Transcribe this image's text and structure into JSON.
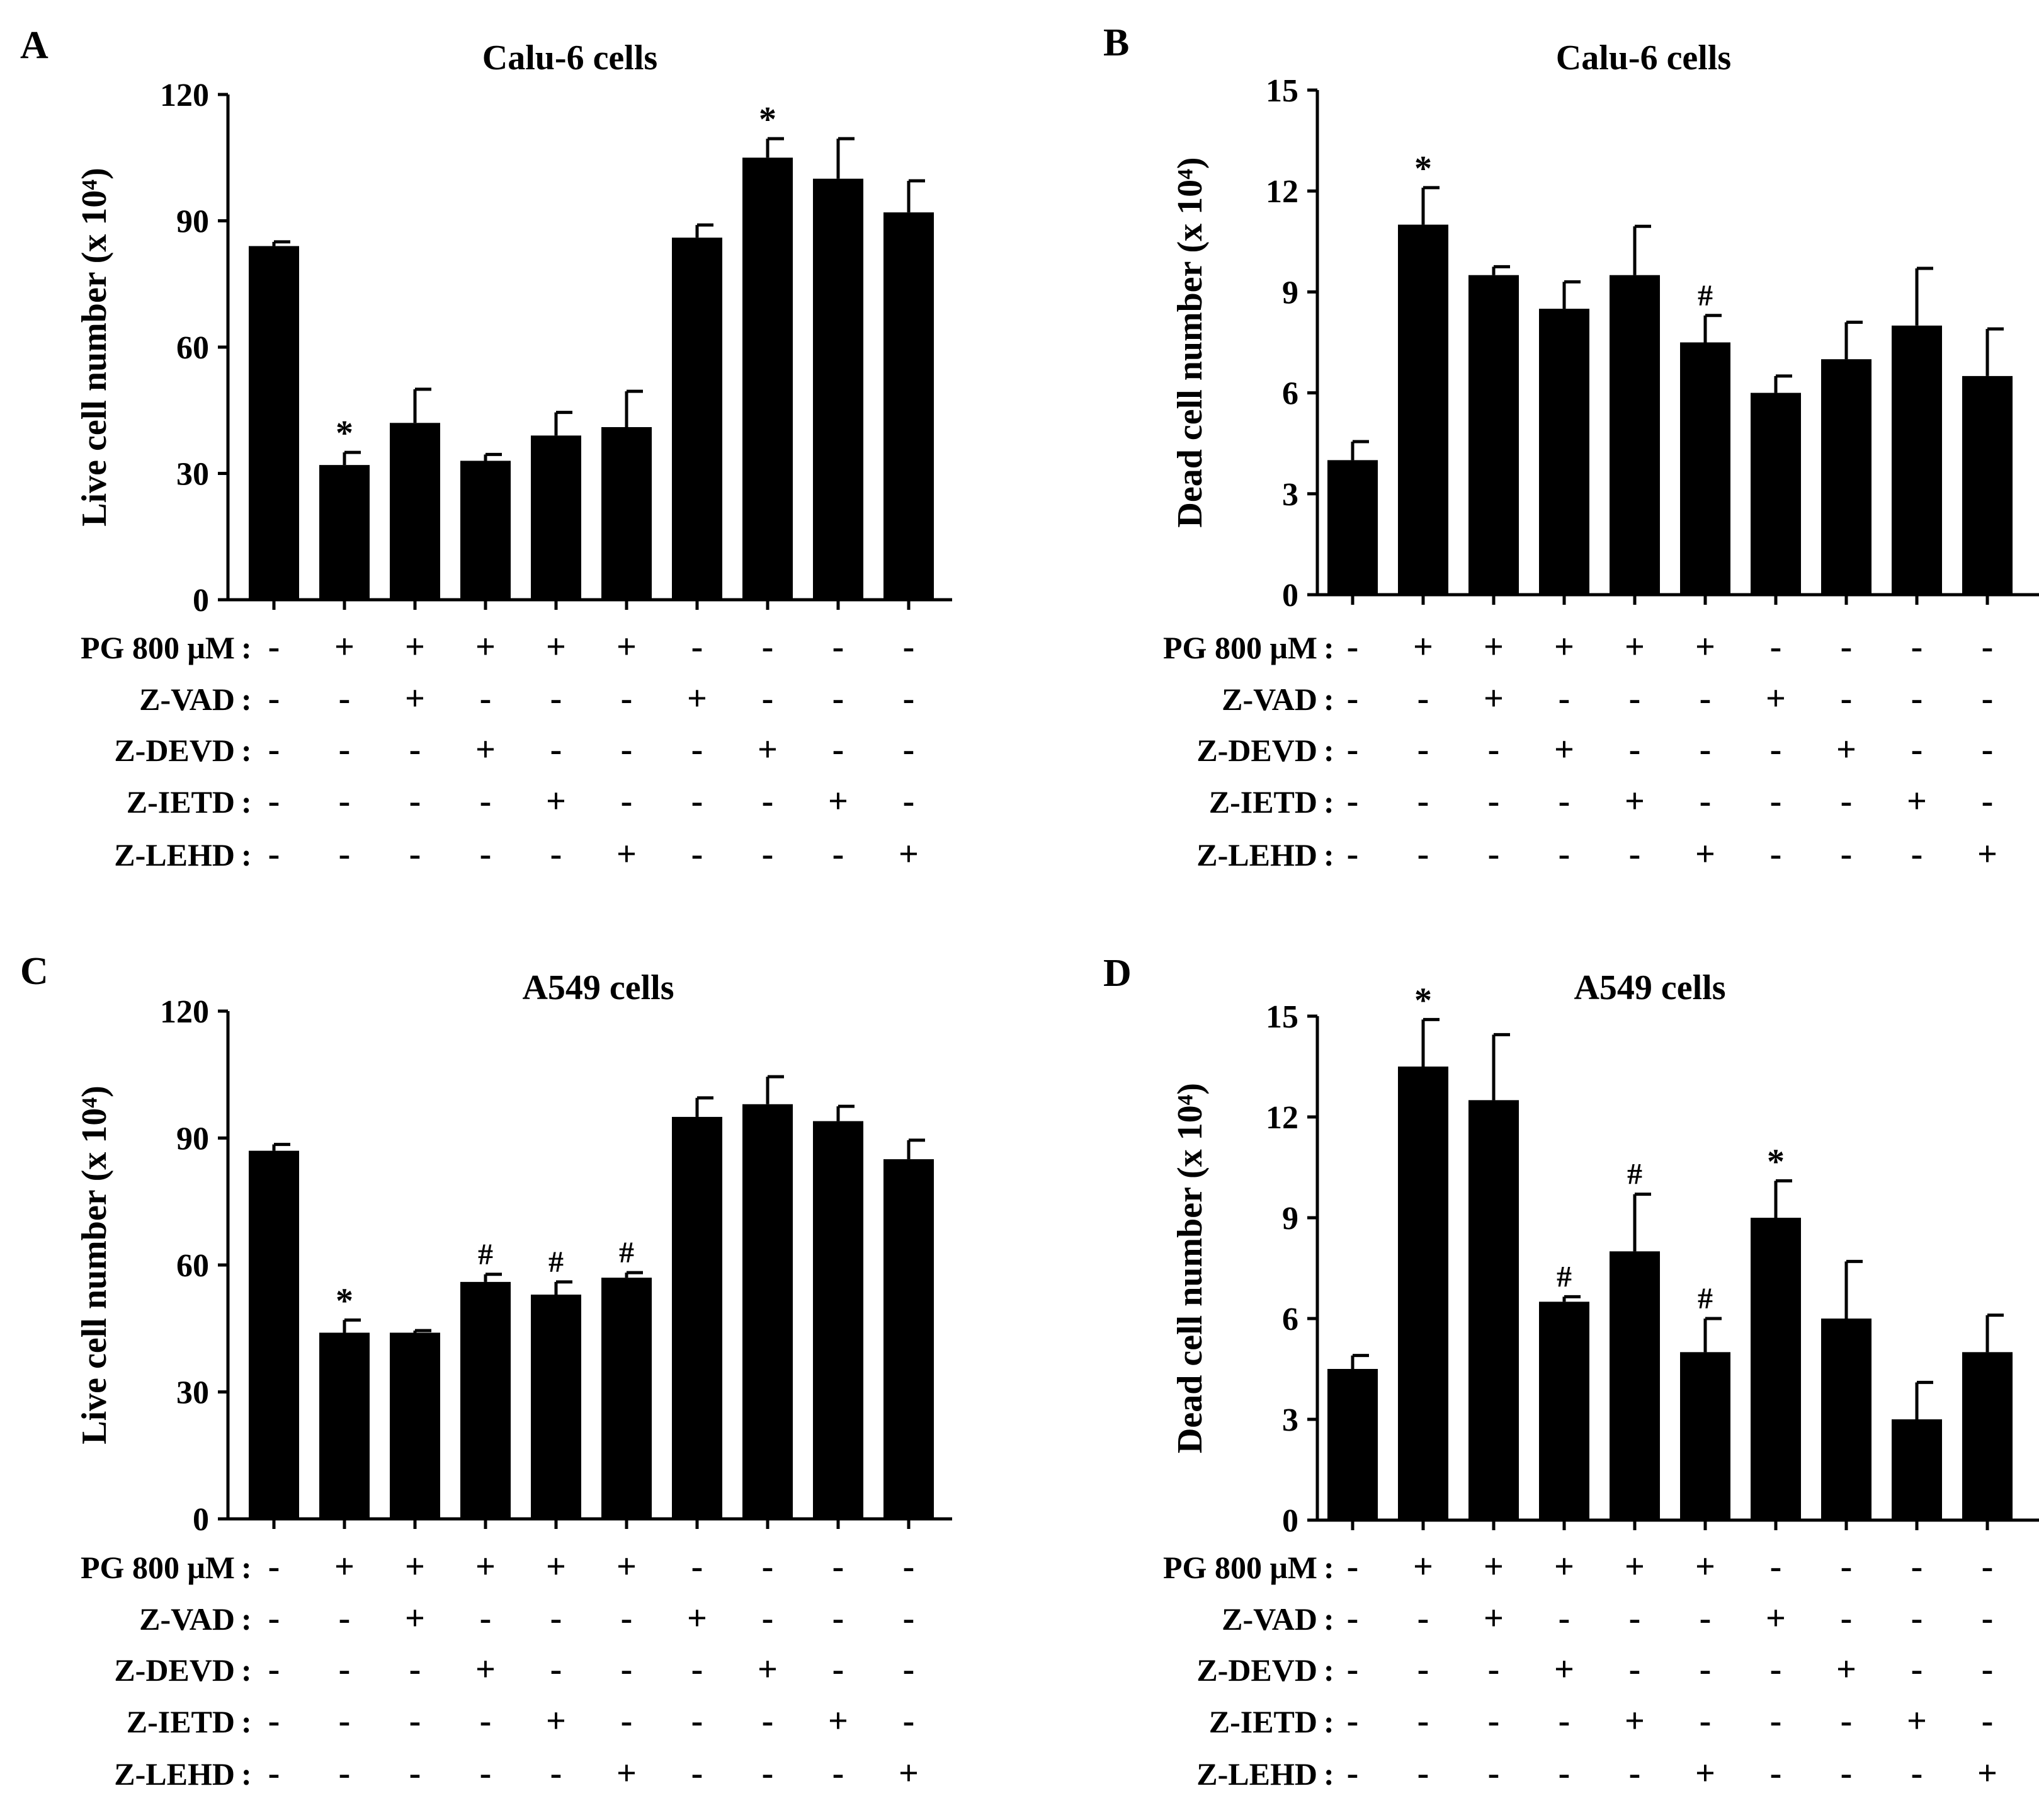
{
  "figure": {
    "condition_labels": [
      "PG 800 μM",
      "Z-VAD",
      "Z-DEVD",
      "Z-IETD",
      "Z-LEHD"
    ],
    "condition_rows": [
      [
        "-",
        "+",
        "+",
        "+",
        "+",
        "+",
        "-",
        "-",
        "-",
        "-"
      ],
      [
        "-",
        "-",
        "+",
        "-",
        "-",
        "-",
        "+",
        "-",
        "-",
        "-"
      ],
      [
        "-",
        "-",
        "-",
        "+",
        "-",
        "-",
        "-",
        "+",
        "-",
        "-"
      ],
      [
        "-",
        "-",
        "-",
        "-",
        "+",
        "-",
        "-",
        "-",
        "+",
        "-"
      ],
      [
        "-",
        "-",
        "-",
        "-",
        "-",
        "+",
        "-",
        "-",
        "-",
        "+"
      ]
    ]
  },
  "chart_data": [
    {
      "panel": "A",
      "type": "bar",
      "title": "Calu-6 cells",
      "ylabel": "Live cell number (x 10⁴)",
      "ylim": [
        0,
        120
      ],
      "yticks": [
        0,
        30,
        60,
        90,
        120
      ],
      "values": [
        84,
        32,
        42,
        33,
        39,
        41,
        86,
        105,
        100,
        92
      ],
      "errors": [
        1,
        3,
        8,
        1.5,
        5.5,
        8.5,
        3,
        4.5,
        9.5,
        7.5
      ],
      "markers": [
        "",
        "*",
        "",
        "",
        "",
        "",
        "",
        "*",
        "",
        ""
      ]
    },
    {
      "panel": "B",
      "type": "bar",
      "title": "Calu-6 cells",
      "ylabel": "Dead cell number (x 10⁴)",
      "ylim": [
        0,
        15
      ],
      "yticks": [
        0,
        3,
        6,
        9,
        12,
        15
      ],
      "values": [
        4,
        11,
        9.5,
        8.5,
        9.5,
        7.5,
        6,
        7,
        8,
        6.5
      ],
      "errors": [
        0.55,
        1.1,
        0.25,
        0.8,
        1.45,
        0.8,
        0.5,
        1.1,
        1.7,
        1.4
      ],
      "markers": [
        "",
        "*",
        "",
        "",
        "",
        "#",
        "",
        "",
        "",
        ""
      ]
    },
    {
      "panel": "C",
      "type": "bar",
      "title": "A549 cells",
      "ylabel": "Live cell number (x 10⁴)",
      "ylim": [
        0,
        120
      ],
      "yticks": [
        0,
        30,
        60,
        90,
        120
      ],
      "values": [
        87,
        44,
        44,
        56,
        53,
        57,
        95,
        98,
        94,
        85
      ],
      "errors": [
        1.5,
        3,
        0.5,
        1.8,
        3,
        1.2,
        4.5,
        6.5,
        3.5,
        4.5
      ],
      "markers": [
        "",
        "*",
        "",
        "#",
        "#",
        "#",
        "",
        "",
        "",
        ""
      ]
    },
    {
      "panel": "D",
      "type": "bar",
      "title": "A549 cells",
      "ylabel": "Dead cell number (x 10⁴)",
      "ylim": [
        0,
        15
      ],
      "yticks": [
        0,
        3,
        6,
        9,
        12,
        15
      ],
      "values": [
        4.5,
        13.5,
        12.5,
        6.5,
        8,
        5,
        9,
        6,
        3,
        5
      ],
      "errors": [
        0.4,
        1.4,
        1.95,
        0.15,
        1.7,
        1,
        1.1,
        1.7,
        1.1,
        1.1
      ],
      "markers": [
        "",
        "*",
        "",
        "#",
        "#",
        "#",
        "*",
        "",
        "",
        ""
      ]
    }
  ]
}
